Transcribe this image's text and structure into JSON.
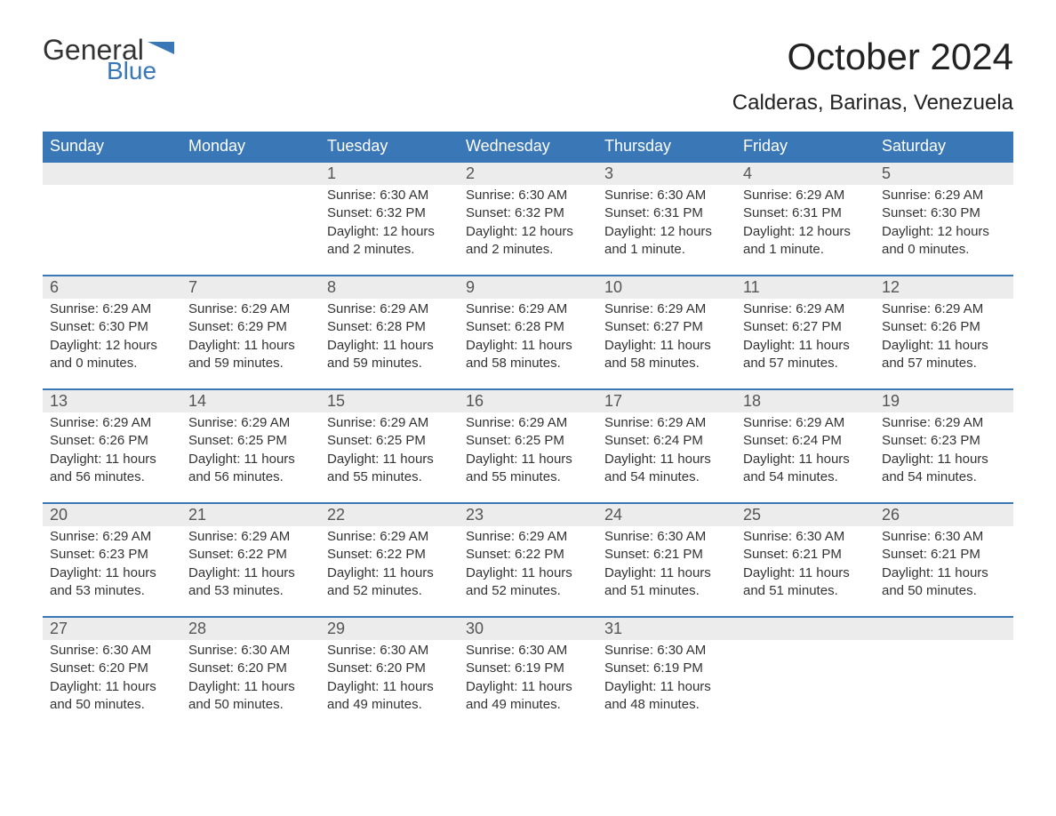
{
  "brand": {
    "word1": "General",
    "word2": "Blue",
    "flag_color": "#3a77b7"
  },
  "title": "October 2024",
  "subtitle": "Calderas, Barinas, Venezuela",
  "colors": {
    "header_bg": "#3a77b7",
    "header_text": "#ffffff",
    "daynum_bg": "#ececec",
    "text": "#333333",
    "border": "#3a77b7",
    "background": "#ffffff"
  },
  "fonts": {
    "title_size_pt": 32,
    "subtitle_size_pt": 18,
    "header_size_pt": 14,
    "daynum_size_pt": 14,
    "body_size_pt": 11
  },
  "columns": [
    "Sunday",
    "Monday",
    "Tuesday",
    "Wednesday",
    "Thursday",
    "Friday",
    "Saturday"
  ],
  "weeks": [
    [
      {
        "day": "",
        "sunrise": "",
        "sunset": "",
        "daylight": ""
      },
      {
        "day": "",
        "sunrise": "",
        "sunset": "",
        "daylight": ""
      },
      {
        "day": "1",
        "sunrise": "Sunrise: 6:30 AM",
        "sunset": "Sunset: 6:32 PM",
        "daylight": "Daylight: 12 hours and 2 minutes."
      },
      {
        "day": "2",
        "sunrise": "Sunrise: 6:30 AM",
        "sunset": "Sunset: 6:32 PM",
        "daylight": "Daylight: 12 hours and 2 minutes."
      },
      {
        "day": "3",
        "sunrise": "Sunrise: 6:30 AM",
        "sunset": "Sunset: 6:31 PM",
        "daylight": "Daylight: 12 hours and 1 minute."
      },
      {
        "day": "4",
        "sunrise": "Sunrise: 6:29 AM",
        "sunset": "Sunset: 6:31 PM",
        "daylight": "Daylight: 12 hours and 1 minute."
      },
      {
        "day": "5",
        "sunrise": "Sunrise: 6:29 AM",
        "sunset": "Sunset: 6:30 PM",
        "daylight": "Daylight: 12 hours and 0 minutes."
      }
    ],
    [
      {
        "day": "6",
        "sunrise": "Sunrise: 6:29 AM",
        "sunset": "Sunset: 6:30 PM",
        "daylight": "Daylight: 12 hours and 0 minutes."
      },
      {
        "day": "7",
        "sunrise": "Sunrise: 6:29 AM",
        "sunset": "Sunset: 6:29 PM",
        "daylight": "Daylight: 11 hours and 59 minutes."
      },
      {
        "day": "8",
        "sunrise": "Sunrise: 6:29 AM",
        "sunset": "Sunset: 6:28 PM",
        "daylight": "Daylight: 11 hours and 59 minutes."
      },
      {
        "day": "9",
        "sunrise": "Sunrise: 6:29 AM",
        "sunset": "Sunset: 6:28 PM",
        "daylight": "Daylight: 11 hours and 58 minutes."
      },
      {
        "day": "10",
        "sunrise": "Sunrise: 6:29 AM",
        "sunset": "Sunset: 6:27 PM",
        "daylight": "Daylight: 11 hours and 58 minutes."
      },
      {
        "day": "11",
        "sunrise": "Sunrise: 6:29 AM",
        "sunset": "Sunset: 6:27 PM",
        "daylight": "Daylight: 11 hours and 57 minutes."
      },
      {
        "day": "12",
        "sunrise": "Sunrise: 6:29 AM",
        "sunset": "Sunset: 6:26 PM",
        "daylight": "Daylight: 11 hours and 57 minutes."
      }
    ],
    [
      {
        "day": "13",
        "sunrise": "Sunrise: 6:29 AM",
        "sunset": "Sunset: 6:26 PM",
        "daylight": "Daylight: 11 hours and 56 minutes."
      },
      {
        "day": "14",
        "sunrise": "Sunrise: 6:29 AM",
        "sunset": "Sunset: 6:25 PM",
        "daylight": "Daylight: 11 hours and 56 minutes."
      },
      {
        "day": "15",
        "sunrise": "Sunrise: 6:29 AM",
        "sunset": "Sunset: 6:25 PM",
        "daylight": "Daylight: 11 hours and 55 minutes."
      },
      {
        "day": "16",
        "sunrise": "Sunrise: 6:29 AM",
        "sunset": "Sunset: 6:25 PM",
        "daylight": "Daylight: 11 hours and 55 minutes."
      },
      {
        "day": "17",
        "sunrise": "Sunrise: 6:29 AM",
        "sunset": "Sunset: 6:24 PM",
        "daylight": "Daylight: 11 hours and 54 minutes."
      },
      {
        "day": "18",
        "sunrise": "Sunrise: 6:29 AM",
        "sunset": "Sunset: 6:24 PM",
        "daylight": "Daylight: 11 hours and 54 minutes."
      },
      {
        "day": "19",
        "sunrise": "Sunrise: 6:29 AM",
        "sunset": "Sunset: 6:23 PM",
        "daylight": "Daylight: 11 hours and 54 minutes."
      }
    ],
    [
      {
        "day": "20",
        "sunrise": "Sunrise: 6:29 AM",
        "sunset": "Sunset: 6:23 PM",
        "daylight": "Daylight: 11 hours and 53 minutes."
      },
      {
        "day": "21",
        "sunrise": "Sunrise: 6:29 AM",
        "sunset": "Sunset: 6:22 PM",
        "daylight": "Daylight: 11 hours and 53 minutes."
      },
      {
        "day": "22",
        "sunrise": "Sunrise: 6:29 AM",
        "sunset": "Sunset: 6:22 PM",
        "daylight": "Daylight: 11 hours and 52 minutes."
      },
      {
        "day": "23",
        "sunrise": "Sunrise: 6:29 AM",
        "sunset": "Sunset: 6:22 PM",
        "daylight": "Daylight: 11 hours and 52 minutes."
      },
      {
        "day": "24",
        "sunrise": "Sunrise: 6:30 AM",
        "sunset": "Sunset: 6:21 PM",
        "daylight": "Daylight: 11 hours and 51 minutes."
      },
      {
        "day": "25",
        "sunrise": "Sunrise: 6:30 AM",
        "sunset": "Sunset: 6:21 PM",
        "daylight": "Daylight: 11 hours and 51 minutes."
      },
      {
        "day": "26",
        "sunrise": "Sunrise: 6:30 AM",
        "sunset": "Sunset: 6:21 PM",
        "daylight": "Daylight: 11 hours and 50 minutes."
      }
    ],
    [
      {
        "day": "27",
        "sunrise": "Sunrise: 6:30 AM",
        "sunset": "Sunset: 6:20 PM",
        "daylight": "Daylight: 11 hours and 50 minutes."
      },
      {
        "day": "28",
        "sunrise": "Sunrise: 6:30 AM",
        "sunset": "Sunset: 6:20 PM",
        "daylight": "Daylight: 11 hours and 50 minutes."
      },
      {
        "day": "29",
        "sunrise": "Sunrise: 6:30 AM",
        "sunset": "Sunset: 6:20 PM",
        "daylight": "Daylight: 11 hours and 49 minutes."
      },
      {
        "day": "30",
        "sunrise": "Sunrise: 6:30 AM",
        "sunset": "Sunset: 6:19 PM",
        "daylight": "Daylight: 11 hours and 49 minutes."
      },
      {
        "day": "31",
        "sunrise": "Sunrise: 6:30 AM",
        "sunset": "Sunset: 6:19 PM",
        "daylight": "Daylight: 11 hours and 48 minutes."
      },
      {
        "day": "",
        "sunrise": "",
        "sunset": "",
        "daylight": ""
      },
      {
        "day": "",
        "sunrise": "",
        "sunset": "",
        "daylight": ""
      }
    ]
  ]
}
